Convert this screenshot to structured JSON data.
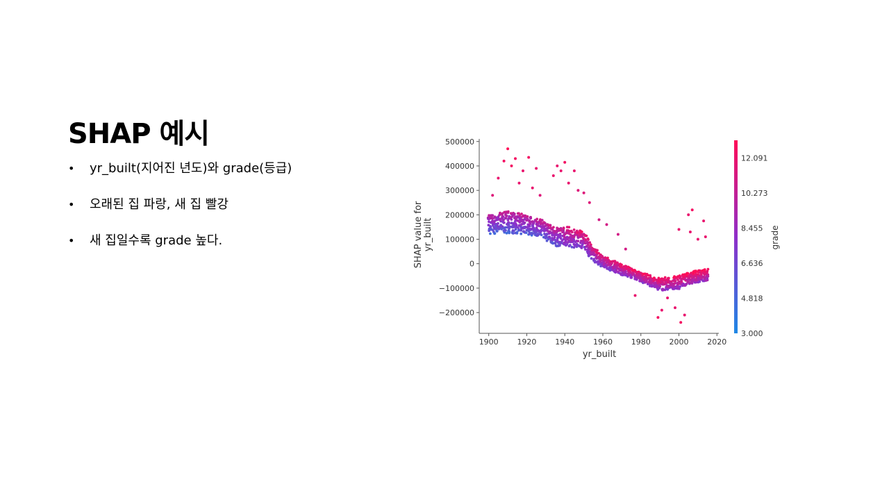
{
  "slide": {
    "title": "SHAP 예시",
    "bullets": [
      "yr_built(지어진 년도)와 grade(등급)",
      "오래된 집 파랑, 새 집 빨강",
      "새 집일수록 grade 높다."
    ]
  },
  "chart_data": {
    "type": "scatter",
    "title": "",
    "xlabel": "yr_built",
    "ylabel": "SHAP value for\nyr_built",
    "xlim": [
      1895,
      2021
    ],
    "ylim": [
      -285000,
      505000
    ],
    "xticks": [
      1900,
      1920,
      1940,
      1960,
      1980,
      2000,
      2020
    ],
    "xtick_labels": [
      "1900",
      "1920",
      "1940",
      "1960",
      "1980",
      "2000",
      "2020"
    ],
    "yticks": [
      500000,
      400000,
      300000,
      200000,
      100000,
      0,
      -100000,
      -200000
    ],
    "ytick_labels": [
      "500000",
      "400000",
      "300000",
      "200000",
      "100000",
      "0",
      "−100000",
      "−200000"
    ],
    "grid": false,
    "colorbar": {
      "label": "grade",
      "min": 3.0,
      "max": 13.0,
      "ticks": [
        12.091,
        10.273,
        8.455,
        6.636,
        4.818,
        3.0
      ],
      "tick_labels": [
        "12.091",
        "10.273",
        "8.455",
        "6.636",
        "4.818",
        "3.000"
      ],
      "color_low": "#1e88e5",
      "color_mid": "#8f2ec9",
      "color_high": "#ff0d57"
    },
    "trend": [
      {
        "year": 1900,
        "center": 160000,
        "spread": 38000
      },
      {
        "year": 1910,
        "center": 170000,
        "spread": 45000
      },
      {
        "year": 1920,
        "center": 160000,
        "spread": 40000
      },
      {
        "year": 1928,
        "center": 145000,
        "spread": 35000
      },
      {
        "year": 1935,
        "center": 110000,
        "spread": 38000
      },
      {
        "year": 1942,
        "center": 110000,
        "spread": 40000
      },
      {
        "year": 1950,
        "center": 95000,
        "spread": 35000
      },
      {
        "year": 1955,
        "center": 40000,
        "spread": 30000
      },
      {
        "year": 1960,
        "center": 10000,
        "spread": 25000
      },
      {
        "year": 1970,
        "center": -25000,
        "spread": 22000
      },
      {
        "year": 1980,
        "center": -55000,
        "spread": 20000
      },
      {
        "year": 1990,
        "center": -85000,
        "spread": 25000
      },
      {
        "year": 2000,
        "center": -75000,
        "spread": 28000
      },
      {
        "year": 2008,
        "center": -55000,
        "spread": 25000
      },
      {
        "year": 2015,
        "center": -45000,
        "spread": 25000
      }
    ],
    "outliers": [
      {
        "x": 1902,
        "y": 280000,
        "grade": 11.5
      },
      {
        "x": 1905,
        "y": 350000,
        "grade": 12
      },
      {
        "x": 1908,
        "y": 420000,
        "grade": 12.5
      },
      {
        "x": 1910,
        "y": 470000,
        "grade": 13
      },
      {
        "x": 1912,
        "y": 400000,
        "grade": 12.5
      },
      {
        "x": 1914,
        "y": 430000,
        "grade": 12.5
      },
      {
        "x": 1916,
        "y": 330000,
        "grade": 12
      },
      {
        "x": 1918,
        "y": 380000,
        "grade": 12
      },
      {
        "x": 1921,
        "y": 435000,
        "grade": 12.5
      },
      {
        "x": 1923,
        "y": 310000,
        "grade": 12
      },
      {
        "x": 1925,
        "y": 390000,
        "grade": 12
      },
      {
        "x": 1927,
        "y": 280000,
        "grade": 11.5
      },
      {
        "x": 1934,
        "y": 360000,
        "grade": 12
      },
      {
        "x": 1936,
        "y": 400000,
        "grade": 12
      },
      {
        "x": 1938,
        "y": 380000,
        "grade": 12
      },
      {
        "x": 1940,
        "y": 415000,
        "grade": 12.5
      },
      {
        "x": 1942,
        "y": 330000,
        "grade": 12
      },
      {
        "x": 1945,
        "y": 380000,
        "grade": 12
      },
      {
        "x": 1947,
        "y": 300000,
        "grade": 11.5
      },
      {
        "x": 1950,
        "y": 290000,
        "grade": 11.5
      },
      {
        "x": 1953,
        "y": 250000,
        "grade": 11.5
      },
      {
        "x": 1958,
        "y": 180000,
        "grade": 11
      },
      {
        "x": 1962,
        "y": 160000,
        "grade": 11
      },
      {
        "x": 1968,
        "y": 120000,
        "grade": 11
      },
      {
        "x": 1972,
        "y": 60000,
        "grade": 11
      },
      {
        "x": 1977,
        "y": -130000,
        "grade": 12
      },
      {
        "x": 1989,
        "y": -220000,
        "grade": 12.5
      },
      {
        "x": 1991,
        "y": -190000,
        "grade": 12
      },
      {
        "x": 1994,
        "y": -140000,
        "grade": 12
      },
      {
        "x": 1998,
        "y": -180000,
        "grade": 12
      },
      {
        "x": 2000,
        "y": 140000,
        "grade": 12
      },
      {
        "x": 2001,
        "y": -240000,
        "grade": 12.5
      },
      {
        "x": 2003,
        "y": -210000,
        "grade": 12
      },
      {
        "x": 2005,
        "y": 200000,
        "grade": 12
      },
      {
        "x": 2006,
        "y": 130000,
        "grade": 12
      },
      {
        "x": 2007,
        "y": 220000,
        "grade": 12.5
      },
      {
        "x": 2010,
        "y": 100000,
        "grade": 12
      },
      {
        "x": 2013,
        "y": 175000,
        "grade": 12
      },
      {
        "x": 2014,
        "y": 110000,
        "grade": 12
      }
    ]
  }
}
